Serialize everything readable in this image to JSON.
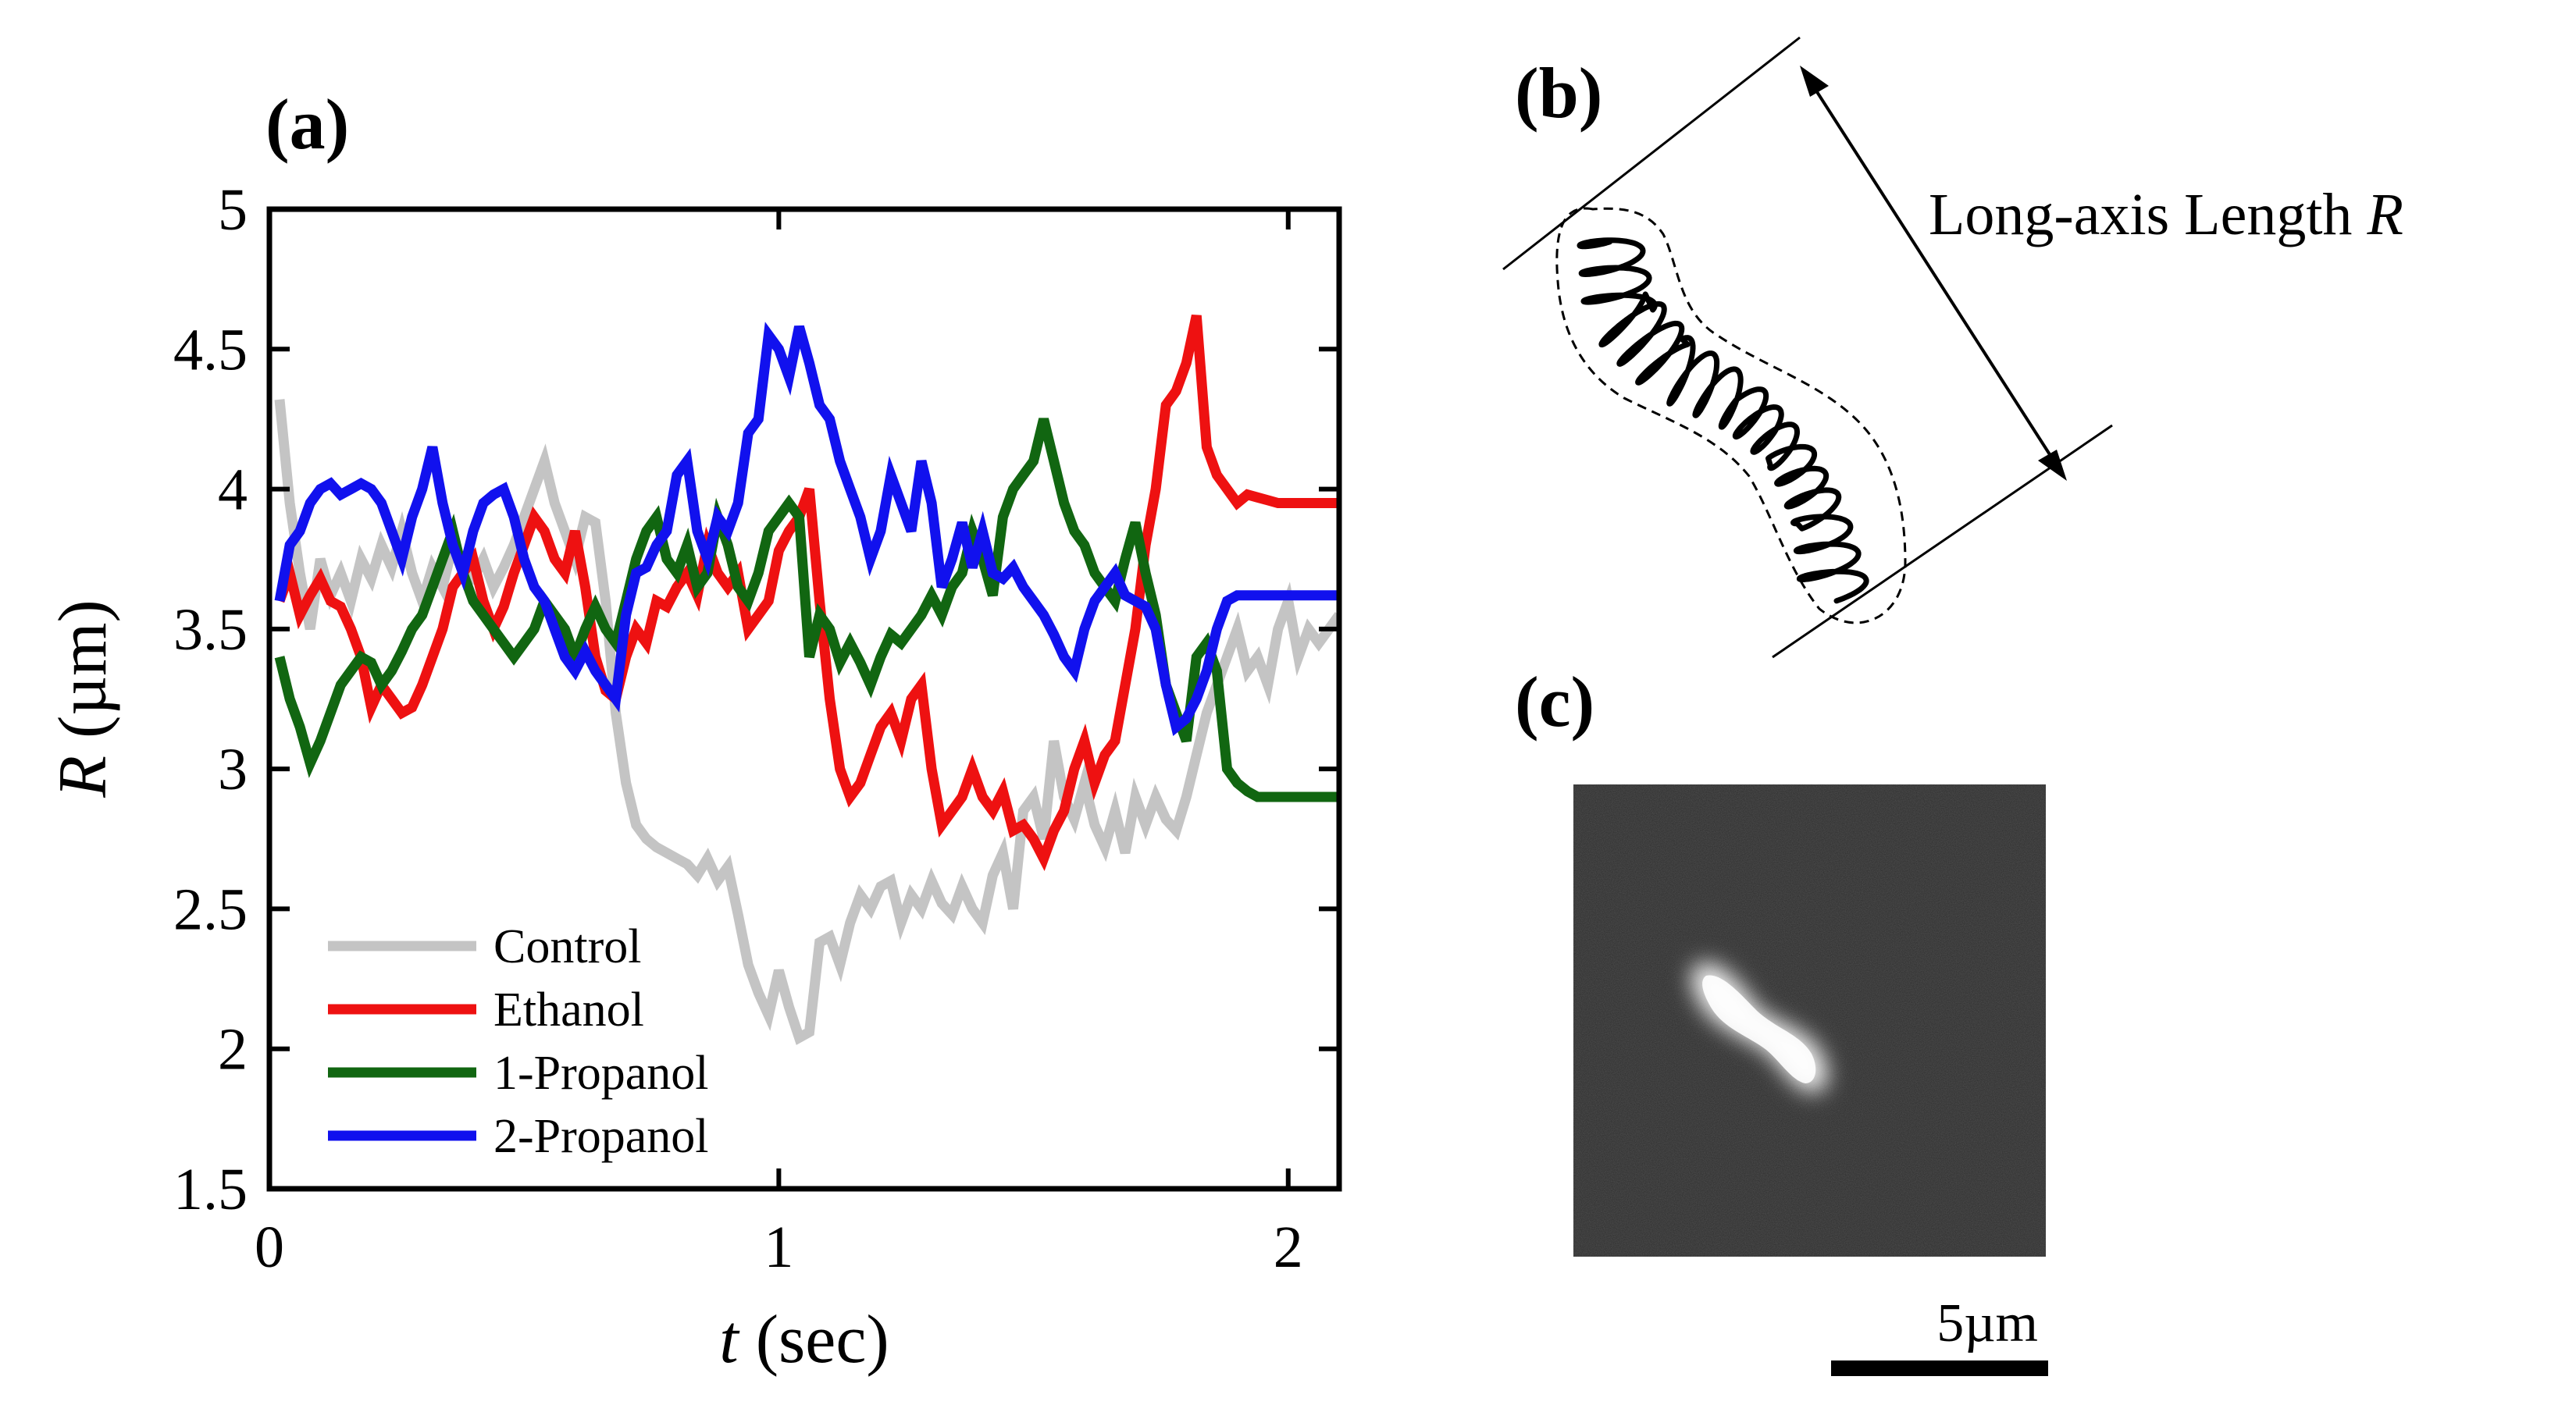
{
  "panels": {
    "a": "(a)",
    "b": "(b)",
    "c": "(c)"
  },
  "chart_data": {
    "type": "line",
    "xlabel_italic": "t",
    "xlabel_rest": " (sec)",
    "ylabel_italic": "R",
    "ylabel_rest": " (µm)",
    "xlim": [
      0,
      2.1
    ],
    "ylim": [
      1.5,
      5
    ],
    "xticks": [
      0,
      1,
      2
    ],
    "yticks": [
      1.5,
      2,
      2.5,
      3,
      3.5,
      4,
      4.5,
      5
    ],
    "xtick_labels": [
      "0",
      "1",
      "2"
    ],
    "ytick_labels": [
      "1.5",
      "2",
      "2.5",
      "3",
      "3.5",
      "4",
      "4.5",
      "5"
    ],
    "legend_position": "lower-left",
    "series": [
      {
        "name": "Control",
        "color": "#c4c4c4",
        "x": [
          0.02,
          0.04,
          0.06,
          0.08,
          0.1,
          0.12,
          0.14,
          0.16,
          0.18,
          0.2,
          0.22,
          0.24,
          0.26,
          0.28,
          0.3,
          0.32,
          0.34,
          0.36,
          0.38,
          0.4,
          0.42,
          0.44,
          0.46,
          0.48,
          0.5,
          0.52,
          0.54,
          0.56,
          0.58,
          0.6,
          0.62,
          0.64,
          0.66,
          0.68,
          0.7,
          0.72,
          0.74,
          0.76,
          0.78,
          0.8,
          0.82,
          0.84,
          0.86,
          0.88,
          0.9,
          0.92,
          0.94,
          0.96,
          0.98,
          1.0,
          1.02,
          1.04,
          1.06,
          1.08,
          1.1,
          1.12,
          1.14,
          1.16,
          1.18,
          1.2,
          1.22,
          1.24,
          1.26,
          1.28,
          1.3,
          1.32,
          1.34,
          1.36,
          1.38,
          1.4,
          1.42,
          1.44,
          1.46,
          1.48,
          1.5,
          1.52,
          1.54,
          1.56,
          1.58,
          1.6,
          1.62,
          1.64,
          1.66,
          1.68,
          1.7,
          1.72,
          1.74,
          1.76,
          1.78,
          1.8,
          1.82,
          1.84,
          1.86,
          1.88,
          1.9,
          1.92,
          1.94,
          1.96,
          1.98,
          2.0,
          2.02,
          2.04,
          2.06,
          2.08,
          2.1
        ],
        "values": [
          4.32,
          3.95,
          3.7,
          3.5,
          3.75,
          3.62,
          3.7,
          3.6,
          3.75,
          3.68,
          3.8,
          3.72,
          3.85,
          3.7,
          3.6,
          3.72,
          3.65,
          3.8,
          3.7,
          3.68,
          3.75,
          3.65,
          3.72,
          3.8,
          3.9,
          4.0,
          4.1,
          3.95,
          3.85,
          3.75,
          3.9,
          3.88,
          3.6,
          3.2,
          2.95,
          2.8,
          2.75,
          2.72,
          2.7,
          2.68,
          2.66,
          2.62,
          2.68,
          2.6,
          2.65,
          2.48,
          2.3,
          2.2,
          2.12,
          2.28,
          2.15,
          2.04,
          2.06,
          2.38,
          2.4,
          2.3,
          2.45,
          2.55,
          2.5,
          2.58,
          2.6,
          2.45,
          2.55,
          2.5,
          2.6,
          2.52,
          2.48,
          2.58,
          2.5,
          2.45,
          2.62,
          2.7,
          2.5,
          2.85,
          2.9,
          2.75,
          3.1,
          2.9,
          2.82,
          2.95,
          2.8,
          2.72,
          2.85,
          2.7,
          2.9,
          2.8,
          2.9,
          2.82,
          2.78,
          2.9,
          3.05,
          3.2,
          3.3,
          3.4,
          3.5,
          3.35,
          3.4,
          3.3,
          3.5,
          3.6,
          3.4,
          3.5,
          3.45,
          3.5,
          3.55
        ]
      },
      {
        "name": "Ethanol",
        "color": "#ee1111",
        "x": [
          0.02,
          0.04,
          0.06,
          0.08,
          0.1,
          0.12,
          0.14,
          0.16,
          0.18,
          0.2,
          0.22,
          0.24,
          0.26,
          0.28,
          0.3,
          0.32,
          0.34,
          0.36,
          0.38,
          0.4,
          0.42,
          0.44,
          0.46,
          0.48,
          0.5,
          0.52,
          0.54,
          0.56,
          0.58,
          0.6,
          0.62,
          0.64,
          0.66,
          0.68,
          0.7,
          0.72,
          0.74,
          0.76,
          0.78,
          0.8,
          0.82,
          0.84,
          0.86,
          0.88,
          0.9,
          0.92,
          0.94,
          0.96,
          0.98,
          1.0,
          1.02,
          1.04,
          1.06,
          1.08,
          1.1,
          1.12,
          1.14,
          1.16,
          1.18,
          1.2,
          1.22,
          1.24,
          1.26,
          1.28,
          1.3,
          1.32,
          1.34,
          1.36,
          1.38,
          1.4,
          1.42,
          1.44,
          1.46,
          1.48,
          1.5,
          1.52,
          1.54,
          1.56,
          1.58,
          1.6,
          1.62,
          1.64,
          1.66,
          1.68,
          1.7,
          1.72,
          1.74,
          1.76,
          1.78,
          1.8,
          1.82,
          1.84,
          1.86,
          1.88,
          1.9,
          1.92,
          1.94,
          1.96,
          1.98,
          2.0,
          2.02,
          2.04,
          2.06,
          2.08,
          2.1
        ],
        "values": [
          3.6,
          3.7,
          3.55,
          3.62,
          3.68,
          3.6,
          3.58,
          3.5,
          3.4,
          3.22,
          3.3,
          3.25,
          3.2,
          3.22,
          3.3,
          3.4,
          3.5,
          3.65,
          3.7,
          3.75,
          3.6,
          3.5,
          3.58,
          3.7,
          3.8,
          3.9,
          3.85,
          3.75,
          3.7,
          3.85,
          3.65,
          3.4,
          3.28,
          3.25,
          3.4,
          3.5,
          3.45,
          3.6,
          3.58,
          3.65,
          3.7,
          3.62,
          3.8,
          3.7,
          3.65,
          3.7,
          3.5,
          3.55,
          3.6,
          3.78,
          3.85,
          3.9,
          4.0,
          3.6,
          3.25,
          3.0,
          2.9,
          2.95,
          3.05,
          3.15,
          3.2,
          3.1,
          3.25,
          3.3,
          3.0,
          2.8,
          2.85,
          2.9,
          3.0,
          2.9,
          2.85,
          2.92,
          2.78,
          2.8,
          2.75,
          2.68,
          2.78,
          2.85,
          3.0,
          3.1,
          2.95,
          3.05,
          3.1,
          3.3,
          3.5,
          3.8,
          4.0,
          4.3,
          4.35,
          4.45,
          4.62,
          4.15,
          4.05,
          4.0,
          3.95,
          3.98,
          3.97,
          3.96,
          3.95,
          3.95,
          3.95,
          3.95,
          3.95,
          3.95,
          3.95
        ]
      },
      {
        "name": "1-Propanol",
        "color": "#116611",
        "x": [
          0.02,
          0.04,
          0.06,
          0.08,
          0.1,
          0.12,
          0.14,
          0.16,
          0.18,
          0.2,
          0.22,
          0.24,
          0.26,
          0.28,
          0.3,
          0.32,
          0.34,
          0.36,
          0.38,
          0.4,
          0.42,
          0.44,
          0.46,
          0.48,
          0.5,
          0.52,
          0.54,
          0.56,
          0.58,
          0.6,
          0.62,
          0.64,
          0.66,
          0.68,
          0.7,
          0.72,
          0.74,
          0.76,
          0.78,
          0.8,
          0.82,
          0.84,
          0.86,
          0.88,
          0.9,
          0.92,
          0.94,
          0.96,
          0.98,
          1.0,
          1.02,
          1.04,
          1.06,
          1.08,
          1.1,
          1.12,
          1.14,
          1.16,
          1.18,
          1.2,
          1.22,
          1.24,
          1.26,
          1.28,
          1.3,
          1.32,
          1.34,
          1.36,
          1.38,
          1.4,
          1.42,
          1.44,
          1.46,
          1.48,
          1.5,
          1.52,
          1.54,
          1.56,
          1.58,
          1.6,
          1.62,
          1.64,
          1.66,
          1.68,
          1.7,
          1.72,
          1.74,
          1.76,
          1.78,
          1.8,
          1.82,
          1.84,
          1.86,
          1.88,
          1.9,
          1.92,
          1.94,
          1.96,
          1.98,
          2.0,
          2.02,
          2.04,
          2.06,
          2.08,
          2.1
        ],
        "values": [
          3.4,
          3.25,
          3.15,
          3.02,
          3.1,
          3.2,
          3.3,
          3.35,
          3.4,
          3.38,
          3.3,
          3.35,
          3.42,
          3.5,
          3.55,
          3.65,
          3.75,
          3.85,
          3.7,
          3.6,
          3.55,
          3.5,
          3.45,
          3.4,
          3.45,
          3.5,
          3.6,
          3.55,
          3.5,
          3.4,
          3.5,
          3.58,
          3.5,
          3.45,
          3.6,
          3.75,
          3.85,
          3.9,
          3.75,
          3.7,
          3.8,
          3.65,
          3.7,
          3.9,
          3.8,
          3.65,
          3.6,
          3.7,
          3.85,
          3.9,
          3.95,
          3.9,
          3.4,
          3.55,
          3.5,
          3.38,
          3.45,
          3.38,
          3.3,
          3.4,
          3.48,
          3.45,
          3.5,
          3.55,
          3.62,
          3.55,
          3.65,
          3.7,
          3.85,
          3.75,
          3.62,
          3.9,
          4.0,
          4.05,
          4.1,
          4.25,
          4.1,
          3.95,
          3.85,
          3.8,
          3.7,
          3.65,
          3.6,
          3.75,
          3.88,
          3.7,
          3.55,
          3.3,
          3.2,
          3.1,
          3.4,
          3.45,
          3.35,
          3.0,
          2.95,
          2.92,
          2.9,
          2.9,
          2.9,
          2.9,
          2.9,
          2.9,
          2.9,
          2.9,
          2.9
        ]
      },
      {
        "name": "2-Propanol",
        "color": "#1111ee",
        "x": [
          0.02,
          0.04,
          0.06,
          0.08,
          0.1,
          0.12,
          0.14,
          0.16,
          0.18,
          0.2,
          0.22,
          0.24,
          0.26,
          0.28,
          0.3,
          0.32,
          0.34,
          0.36,
          0.38,
          0.4,
          0.42,
          0.44,
          0.46,
          0.48,
          0.5,
          0.52,
          0.54,
          0.56,
          0.58,
          0.6,
          0.62,
          0.64,
          0.66,
          0.68,
          0.7,
          0.72,
          0.74,
          0.76,
          0.78,
          0.8,
          0.82,
          0.84,
          0.86,
          0.88,
          0.9,
          0.92,
          0.94,
          0.96,
          0.98,
          1.0,
          1.02,
          1.04,
          1.06,
          1.08,
          1.1,
          1.12,
          1.14,
          1.16,
          1.18,
          1.2,
          1.22,
          1.24,
          1.26,
          1.28,
          1.3,
          1.32,
          1.34,
          1.36,
          1.38,
          1.4,
          1.42,
          1.44,
          1.46,
          1.48,
          1.5,
          1.52,
          1.54,
          1.56,
          1.58,
          1.6,
          1.62,
          1.64,
          1.66,
          1.68,
          1.7,
          1.72,
          1.74,
          1.76,
          1.78,
          1.8,
          1.82,
          1.84,
          1.86,
          1.88,
          1.9,
          1.92,
          1.94,
          1.96,
          1.98,
          2.0,
          2.02,
          2.04,
          2.06,
          2.08,
          2.1
        ],
        "values": [
          3.6,
          3.8,
          3.85,
          3.95,
          4.0,
          4.02,
          3.98,
          4.0,
          4.02,
          4.0,
          3.95,
          3.85,
          3.75,
          3.9,
          4.0,
          4.15,
          3.95,
          3.8,
          3.7,
          3.85,
          3.95,
          3.98,
          4.0,
          3.9,
          3.75,
          3.65,
          3.6,
          3.5,
          3.4,
          3.35,
          3.42,
          3.35,
          3.3,
          3.25,
          3.55,
          3.7,
          3.72,
          3.8,
          3.85,
          4.05,
          4.1,
          3.85,
          3.75,
          3.9,
          3.85,
          3.95,
          4.2,
          4.25,
          4.55,
          4.5,
          4.4,
          4.58,
          4.45,
          4.3,
          4.25,
          4.1,
          4.0,
          3.9,
          3.75,
          3.85,
          4.05,
          3.95,
          3.85,
          4.1,
          3.95,
          3.65,
          3.75,
          3.88,
          3.72,
          3.85,
          3.7,
          3.68,
          3.72,
          3.65,
          3.6,
          3.55,
          3.48,
          3.4,
          3.35,
          3.5,
          3.6,
          3.65,
          3.7,
          3.62,
          3.6,
          3.58,
          3.5,
          3.3,
          3.15,
          3.18,
          3.25,
          3.35,
          3.5,
          3.6,
          3.62,
          3.62,
          3.62,
          3.62,
          3.62,
          3.62,
          3.62,
          3.62,
          3.62,
          3.62,
          3.62
        ]
      }
    ]
  },
  "panel_b": {
    "label_text": "Long-axis Length ",
    "label_italic": "R"
  },
  "panel_c": {
    "scale_bar_label": "5µm"
  }
}
